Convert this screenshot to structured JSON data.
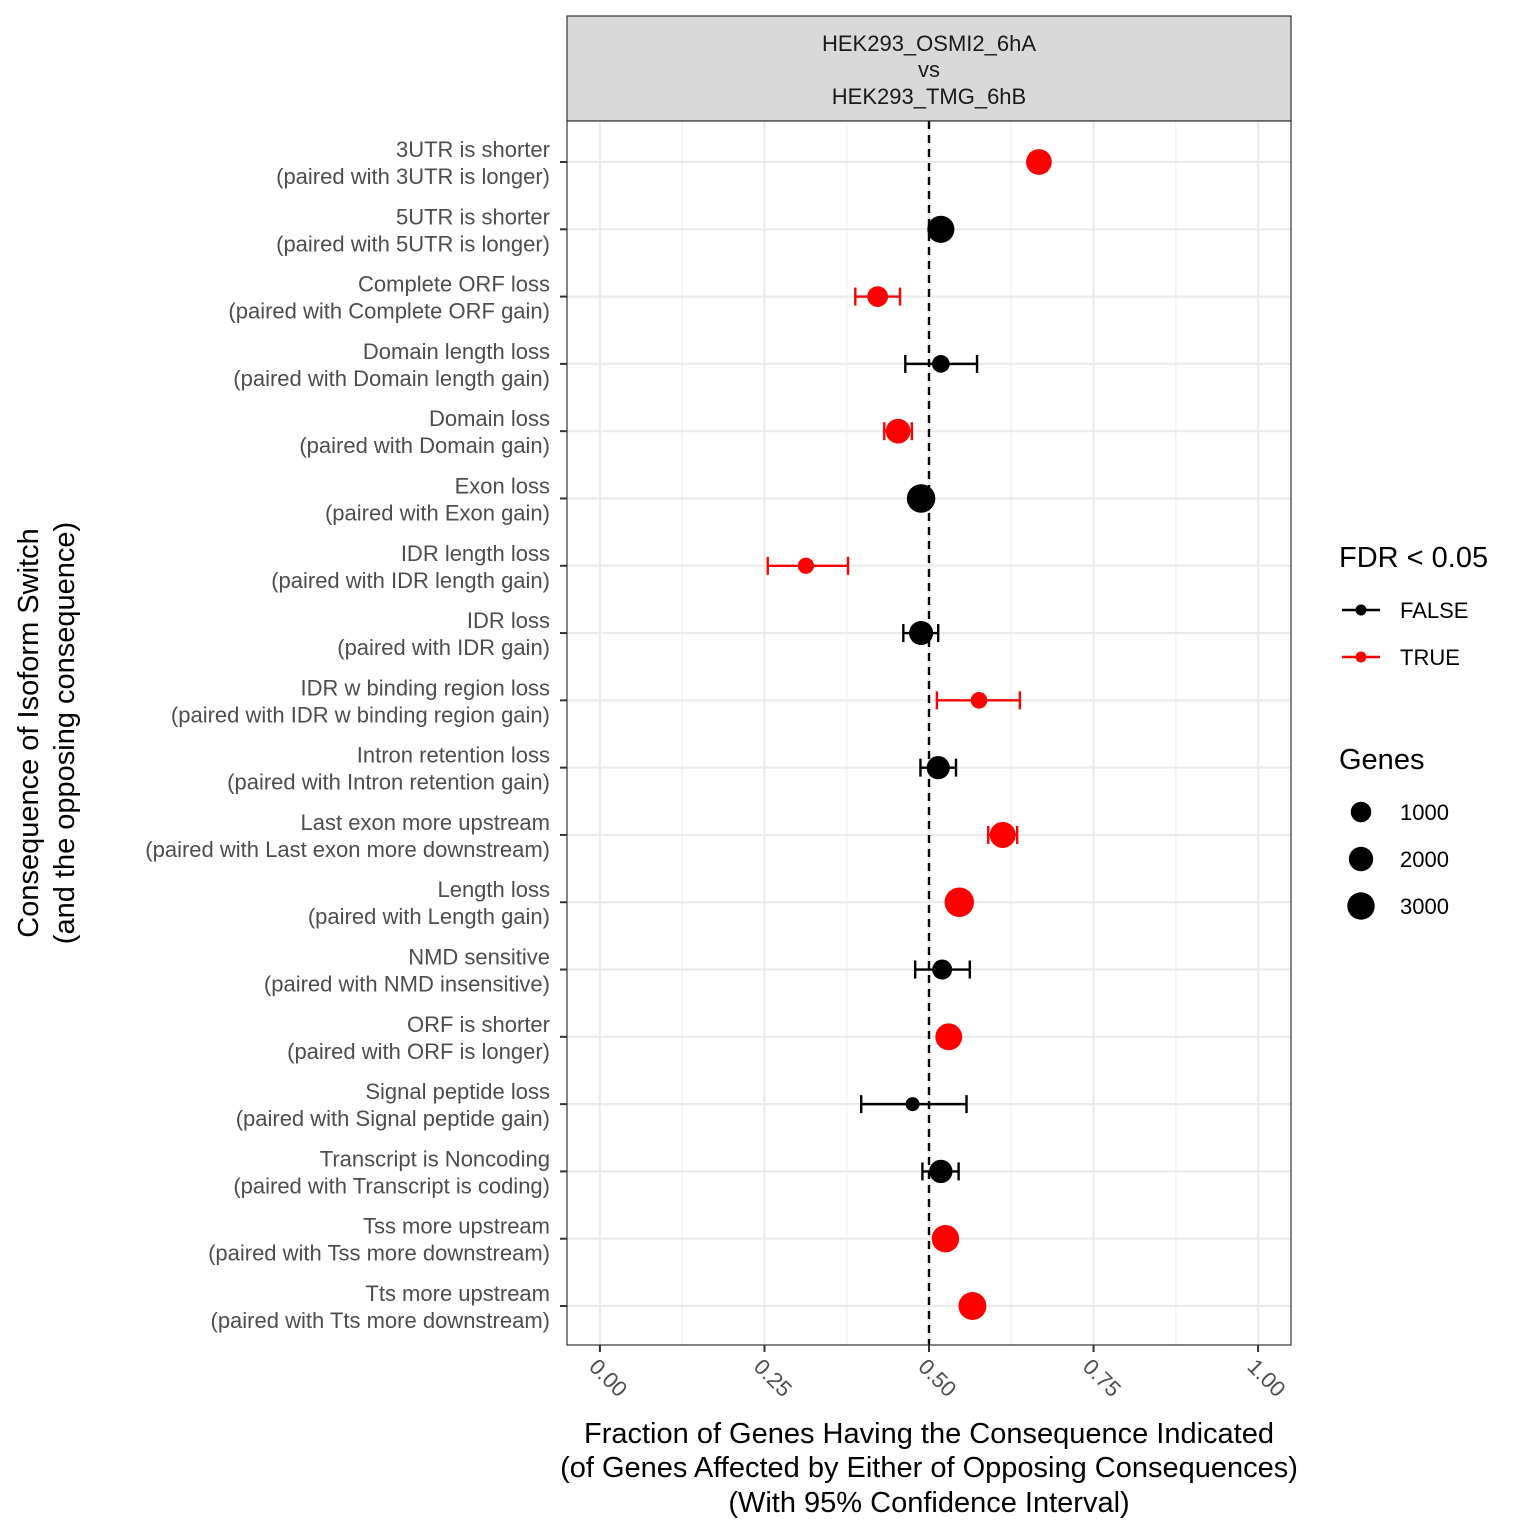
{
  "chart_data": {
    "type": "scatter",
    "facet_title": [
      "HEK293_OSMI2_6hA",
      "vs",
      "HEK293_TMG_6hB"
    ],
    "xlabel": [
      "Fraction of Genes Having the Consequence Indicated",
      "(of Genes Affected by Either of Opposing Consequences)",
      "(With 95% Confidence Interval)"
    ],
    "ylabel": [
      "Consequence of Isoform Switch",
      "(and the opposing consequence)"
    ],
    "xlim": [
      -0.05,
      1.05
    ],
    "x_ticks": [
      0,
      0.25,
      0.5,
      0.75,
      1
    ],
    "x_tick_labels": [
      "0.00",
      "0.25",
      "0.50",
      "0.75",
      "1.00"
    ],
    "reference_line_x": 0.5,
    "grid": true,
    "legend_color_title": "FDR < 0.05",
    "legend_color": [
      {
        "label": "FALSE",
        "color": "#000000"
      },
      {
        "label": "TRUE",
        "color": "#ff0000"
      }
    ],
    "legend_size_title": "Genes",
    "legend_size": [
      {
        "label": "1000",
        "value": 1000
      },
      {
        "label": "2000",
        "value": 2000
      },
      {
        "label": "3000",
        "value": 3000
      }
    ],
    "legend_placement": "right",
    "points": [
      {
        "line1": "3UTR is shorter",
        "line2": "(paired with 3UTR is longer)",
        "x": 0.667,
        "lo": 0.66,
        "hi": 0.674,
        "genes": 2400,
        "sig": true
      },
      {
        "line1": "5UTR is shorter",
        "line2": "(paired with 5UTR is longer)",
        "x": 0.518,
        "lo": 0.508,
        "hi": 0.528,
        "genes": 2900,
        "sig": false
      },
      {
        "line1": "Complete ORF loss",
        "line2": "(paired with Complete ORF gain)",
        "x": 0.422,
        "lo": 0.388,
        "hi": 0.456,
        "genes": 1050,
        "sig": true
      },
      {
        "line1": "Domain length loss",
        "line2": "(paired with Domain length gain)",
        "x": 0.518,
        "lo": 0.464,
        "hi": 0.573,
        "genes": 500,
        "sig": false
      },
      {
        "line1": "Domain loss",
        "line2": "(paired with Domain gain)",
        "x": 0.453,
        "lo": 0.432,
        "hi": 0.474,
        "genes": 2100,
        "sig": true
      },
      {
        "line1": "Exon loss",
        "line2": "(paired with Exon gain)",
        "x": 0.488,
        "lo": 0.478,
        "hi": 0.498,
        "genes": 3400,
        "sig": false
      },
      {
        "line1": "IDR length loss",
        "line2": "(paired with IDR length gain)",
        "x": 0.313,
        "lo": 0.255,
        "hi": 0.377,
        "genes": 300,
        "sig": true
      },
      {
        "line1": "IDR loss",
        "line2": "(paired with IDR gain)",
        "x": 0.488,
        "lo": 0.461,
        "hi": 0.514,
        "genes": 1900,
        "sig": false
      },
      {
        "line1": "IDR w binding region loss",
        "line2": "(paired with IDR w binding region gain)",
        "x": 0.576,
        "lo": 0.512,
        "hi": 0.638,
        "genes": 350,
        "sig": true
      },
      {
        "line1": "Intron retention loss",
        "line2": "(paired with Intron retention gain)",
        "x": 0.514,
        "lo": 0.487,
        "hi": 0.541,
        "genes": 1650,
        "sig": false
      },
      {
        "line1": "Last exon more upstream",
        "line2": "(paired with Last exon more downstream)",
        "x": 0.612,
        "lo": 0.59,
        "hi": 0.634,
        "genes": 2500,
        "sig": true
      },
      {
        "line1": "Length loss",
        "line2": "(paired with Length gain)",
        "x": 0.546,
        "lo": 0.539,
        "hi": 0.553,
        "genes": 3800,
        "sig": true
      },
      {
        "line1": "NMD sensitive",
        "line2": "(paired with NMD insensitive)",
        "x": 0.52,
        "lo": 0.479,
        "hi": 0.562,
        "genes": 900,
        "sig": false
      },
      {
        "line1": "ORF is shorter",
        "line2": "(paired with ORF is longer)",
        "x": 0.53,
        "lo": 0.522,
        "hi": 0.538,
        "genes": 2800,
        "sig": true
      },
      {
        "line1": "Signal peptide loss",
        "line2": "(paired with Signal peptide gain)",
        "x": 0.475,
        "lo": 0.397,
        "hi": 0.557,
        "genes": 100,
        "sig": false
      },
      {
        "line1": "Transcript is Noncoding",
        "line2": "(paired with Transcript is coding)",
        "x": 0.518,
        "lo": 0.49,
        "hi": 0.545,
        "genes": 1700,
        "sig": false
      },
      {
        "line1": "Tss more upstream",
        "line2": "(paired with Tss more downstream)",
        "x": 0.525,
        "lo": 0.518,
        "hi": 0.532,
        "genes": 3000,
        "sig": true
      },
      {
        "line1": "Tts more upstream",
        "line2": "(paired with Tts more downstream)",
        "x": 0.566,
        "lo": 0.559,
        "hi": 0.573,
        "genes": 3200,
        "sig": true
      }
    ]
  }
}
